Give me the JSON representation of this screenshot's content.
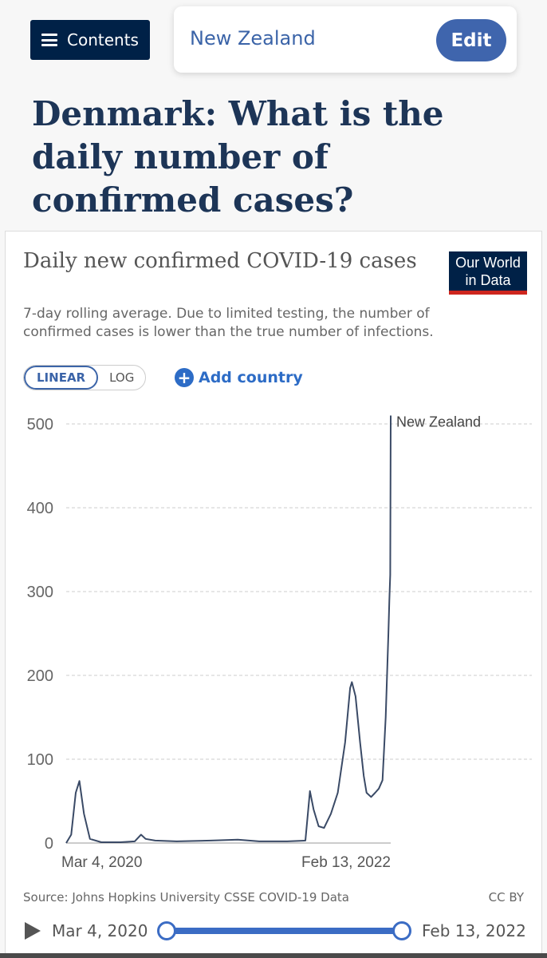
{
  "header": {
    "contents_label": "Contents",
    "country": "New Zealand",
    "edit_label": "Edit"
  },
  "page_title": {
    "prefix": "Denmark: What is the ",
    "bold": "daily",
    "suffix": " number of confirmed cases?"
  },
  "chart_card": {
    "title": "Daily new confirmed COVID-19 cases",
    "subtitle": "7-day rolling average. Due to limited testing, the number of confirmed cases is lower than the true number of infections.",
    "logo_line1": "Our World",
    "logo_line2": "in Data",
    "scale_linear": "LINEAR",
    "scale_log": "LOG",
    "add_country": "Add country",
    "source": "Source: Johns Hopkins University CSSE COVID-19 Data",
    "license": "CC BY",
    "timeline_start": "Mar 4, 2020",
    "timeline_end": "Feb 13, 2022",
    "colors": {
      "line": "#3a4a66",
      "accent": "#3b64a8",
      "logo_bg": "#002147",
      "logo_stripe": "#ce261e"
    },
    "icons": [
      "hamburger-icon",
      "plus-icon",
      "play-icon"
    ]
  },
  "chart_data": {
    "type": "line",
    "title": "Daily new confirmed COVID-19 cases",
    "ylim": [
      0,
      500
    ],
    "y_ticks": [
      0,
      100,
      200,
      300,
      400,
      500
    ],
    "x_tick_labels": [
      "Mar 4, 2020",
      "Feb 13, 2022"
    ],
    "grid": true,
    "series": [
      {
        "name": "New Zealand",
        "x": [
          "2020-03-04",
          "2020-03-15",
          "2020-03-25",
          "2020-04-02",
          "2020-04-12",
          "2020-04-25",
          "2020-05-20",
          "2020-07-01",
          "2020-08-01",
          "2020-08-15",
          "2020-08-25",
          "2020-09-15",
          "2020-11-01",
          "2021-01-15",
          "2021-03-15",
          "2021-05-01",
          "2021-07-01",
          "2021-08-10",
          "2021-08-20",
          "2021-08-28",
          "2021-09-08",
          "2021-09-20",
          "2021-10-05",
          "2021-10-20",
          "2021-11-05",
          "2021-11-16",
          "2021-11-20",
          "2021-11-28",
          "2021-12-08",
          "2021-12-16",
          "2021-12-22",
          "2022-01-01",
          "2022-01-10",
          "2022-01-18",
          "2022-01-26",
          "2022-02-02",
          "2022-02-08",
          "2022-02-10",
          "2022-02-12",
          "2022-02-13"
        ],
        "y": [
          0,
          10,
          60,
          74,
          35,
          5,
          1,
          1,
          2,
          10,
          5,
          3,
          2,
          3,
          4,
          2,
          2,
          3,
          62,
          40,
          20,
          18,
          35,
          60,
          120,
          185,
          192,
          175,
          120,
          80,
          60,
          55,
          60,
          65,
          75,
          150,
          250,
          290,
          320,
          510
        ]
      }
    ],
    "source": "Johns Hopkins University CSSE COVID-19 Data"
  }
}
